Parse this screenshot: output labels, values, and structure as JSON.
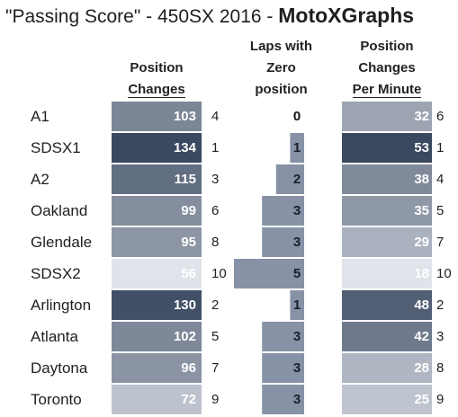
{
  "title": {
    "main": "\"Passing Score\" - 450SX 2016 - ",
    "brand": "MotoXGraphs"
  },
  "headers": {
    "position_changes": [
      "Position",
      "Changes"
    ],
    "zero_laps": [
      "Laps with",
      "Zero",
      "position"
    ],
    "per_minute": [
      "Position",
      "Changes",
      "Per Minute"
    ]
  },
  "colors": {
    "dark": "#3a4860",
    "light": "#dfe3ea",
    "bar": "#8792a6"
  },
  "chart_data": {
    "type": "table",
    "rows": [
      "A1",
      "SDSX1",
      "A2",
      "Oakland",
      "Glendale",
      "SDSX2",
      "Arlington",
      "Atlanta",
      "Daytona",
      "Toronto"
    ],
    "columns": [
      {
        "name": "Position Changes",
        "values": [
          103,
          134,
          115,
          99,
          95,
          56,
          130,
          102,
          96,
          72
        ],
        "ranks": [
          4,
          1,
          3,
          6,
          8,
          10,
          2,
          5,
          7,
          9
        ]
      },
      {
        "name": "Laps with Zero position",
        "values": [
          0,
          1,
          2,
          3,
          3,
          5,
          1,
          3,
          3,
          3
        ]
      },
      {
        "name": "Position Changes Per Minute",
        "values": [
          32,
          53,
          38,
          35,
          29,
          18,
          48,
          42,
          28,
          25
        ],
        "ranks": [
          6,
          1,
          4,
          5,
          7,
          10,
          2,
          3,
          8,
          9
        ]
      }
    ]
  }
}
